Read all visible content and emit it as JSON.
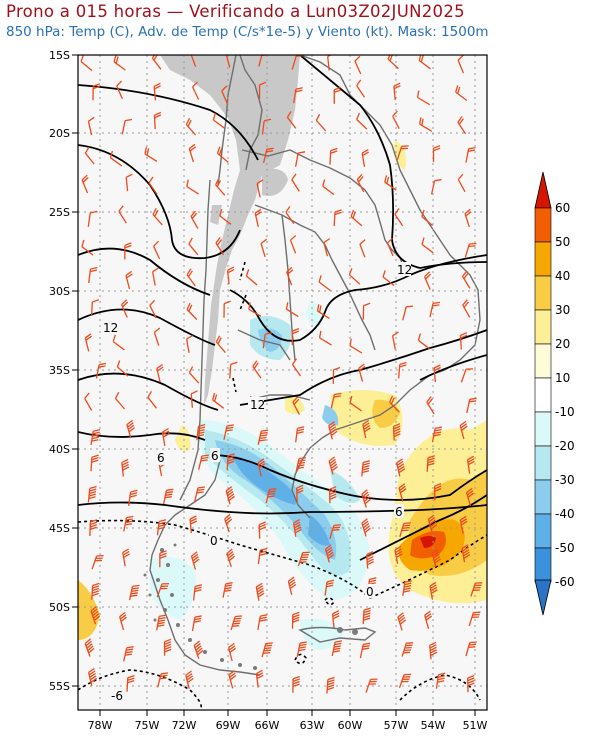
{
  "header": {
    "title": "Prono a 015 horas — Verificando a Lun03Z02JUN2025",
    "subtitle": "850 hPa: Temp (C), Adv. de Temp (C/s*1e-5) y Viento (kt). Mask: 1500m"
  },
  "map": {
    "lat_labels": [
      "15S",
      "20S",
      "25S",
      "30S",
      "35S",
      "40S",
      "45S",
      "50S",
      "55S"
    ],
    "lon_labels": [
      "78W",
      "75W",
      "72W",
      "69W",
      "66W",
      "63W",
      "60W",
      "57W",
      "54W",
      "51W"
    ],
    "contour_labels": [
      "12",
      "12",
      "12",
      "6",
      "6",
      "6",
      "0",
      "0",
      "-6"
    ],
    "colors": {
      "mask": "#c8c8c8",
      "ocean_bg": "#f7f7f7",
      "coast": "#6e6e6e",
      "contour": "#000000",
      "barb": "#f04a1a"
    }
  },
  "colorbar": {
    "labels": [
      "60",
      "50",
      "40",
      "30",
      "20",
      "10",
      "-10",
      "-20",
      "-30",
      "-40",
      "-50",
      "-60"
    ],
    "colors": [
      "#d51500",
      "#f25f00",
      "#f6a800",
      "#f8cd45",
      "#fcef95",
      "#fefbd8",
      "#ffffff",
      "#dcf9f9",
      "#b6e8f0",
      "#8ccdee",
      "#5fb0e6",
      "#3a92dc",
      "#2a74c8"
    ]
  }
}
